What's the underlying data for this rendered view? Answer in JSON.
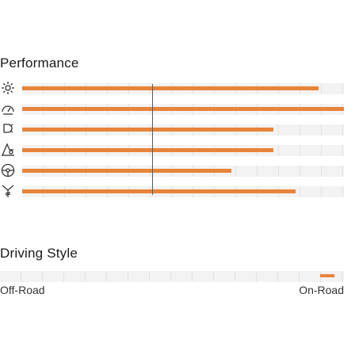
{
  "performance": {
    "title": "Performance",
    "accent": "#e8843a",
    "items": [
      {
        "icon": "sun-gear-icon",
        "value": 0.92
      },
      {
        "icon": "speedometer-icon",
        "value": 1.0
      },
      {
        "icon": "turbo-icon",
        "value": 0.78
      },
      {
        "icon": "acceleration-icon",
        "value": 0.78
      },
      {
        "icon": "steering-wheel-icon",
        "value": 0.65
      },
      {
        "icon": "suspension-icon",
        "value": 0.85
      }
    ]
  },
  "driving_style": {
    "title": "Driving Style",
    "left_label": "Off-Road",
    "right_label": "On-Road",
    "value": 0.97
  }
}
